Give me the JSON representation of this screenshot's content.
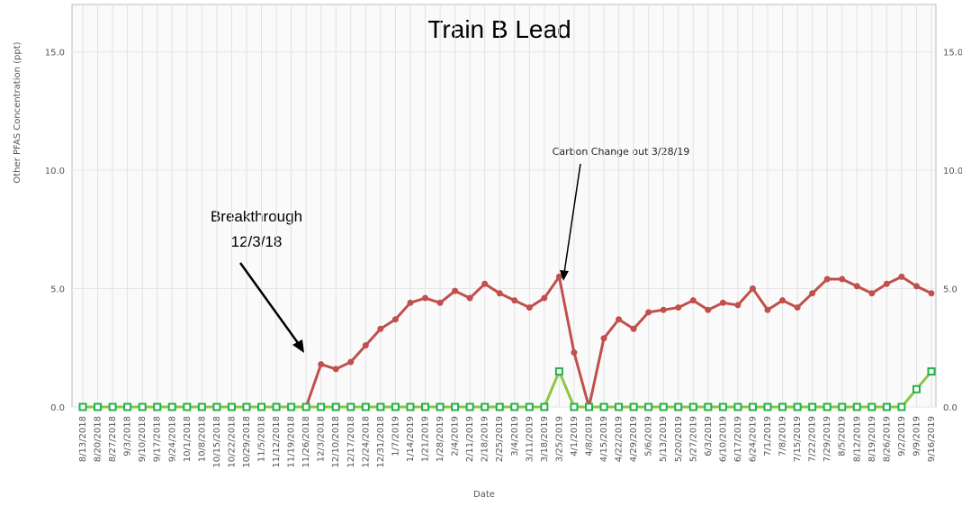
{
  "chart_data": {
    "type": "line",
    "title": "Train B Lead",
    "xlabel": "Date",
    "ylabel": "Other PFAS Concentration (ppt)",
    "annotations": [
      "Carbon Change out 3/28/19",
      "Breakthrough",
      "12/3/18"
    ],
    "categories": [
      "8/13/2018",
      "8/20/2018",
      "8/27/2018",
      "9/3/2018",
      "9/10/2018",
      "9/17/2018",
      "9/24/2018",
      "10/1/2018",
      "10/8/2018",
      "10/15/2018",
      "10/22/2018",
      "10/29/2018",
      "11/5/2018",
      "11/12/2018",
      "11/19/2018",
      "11/26/2018",
      "12/3/2018",
      "12/10/2018",
      "12/17/2018",
      "12/24/2018",
      "12/31/2018",
      "1/7/2019",
      "1/14/2019",
      "1/21/2019",
      "1/28/2019",
      "2/4/2019",
      "2/11/2019",
      "2/18/2019",
      "2/25/2019",
      "3/4/2019",
      "3/11/2019",
      "3/18/2019",
      "3/25/2019",
      "4/1/2019",
      "4/8/2019",
      "4/15/2019",
      "4/22/2019",
      "4/29/2019",
      "5/6/2019",
      "5/13/2019",
      "5/20/2019",
      "5/27/2019",
      "6/3/2019",
      "6/10/2019",
      "6/17/2019",
      "6/24/2019",
      "7/1/2019",
      "7/8/2019",
      "7/15/2019",
      "7/22/2019",
      "7/29/2019",
      "8/5/2019",
      "8/12/2019",
      "8/19/2019",
      "8/26/2019",
      "9/2/2019",
      "9/9/2019",
      "9/16/2019"
    ],
    "series": [
      {
        "color": "#c0504d",
        "values": [
          0,
          0,
          0,
          0,
          0,
          0,
          0,
          0,
          0,
          0,
          0,
          0,
          0,
          0,
          0,
          0,
          1.8,
          1.6,
          1.9,
          2.6,
          3.3,
          3.7,
          4.4,
          4.6,
          4.4,
          4.9,
          4.6,
          5.2,
          4.8,
          4.5,
          4.2,
          4.6,
          5.5,
          2.3,
          0,
          2.9,
          3.7,
          3.3,
          4.0,
          4.1,
          4.2,
          4.5,
          4.1,
          4.4,
          4.3,
          5.0,
          4.1,
          4.5,
          4.2,
          4.8,
          5.4,
          5.4,
          5.1,
          4.8,
          5.2,
          5.5,
          5.1,
          4.8
        ]
      },
      {
        "color": "#8dc63f",
        "marker_color": "#22b14c",
        "values": [
          0,
          0,
          0,
          0,
          0,
          0,
          0,
          0,
          0,
          0,
          0,
          0,
          0,
          0,
          0,
          0,
          0,
          0,
          0,
          0,
          0,
          0,
          0,
          0,
          0,
          0,
          0,
          0,
          0,
          0,
          0,
          0,
          1.5,
          0,
          0,
          0,
          0,
          0,
          0,
          0,
          0,
          0,
          0,
          0,
          0,
          0,
          0,
          0,
          0,
          0,
          0,
          0,
          0,
          0,
          0,
          0,
          0.75,
          1.5
        ]
      }
    ],
    "ylim": [
      0,
      17
    ],
    "yticks": [
      {
        "value": 0,
        "label": "0.0"
      },
      {
        "value": 5,
        "label": "5.0"
      },
      {
        "value": 10,
        "label": "10.0"
      },
      {
        "value": 15,
        "label": "15.0"
      }
    ],
    "grid": true,
    "right_axis_labels": true
  }
}
